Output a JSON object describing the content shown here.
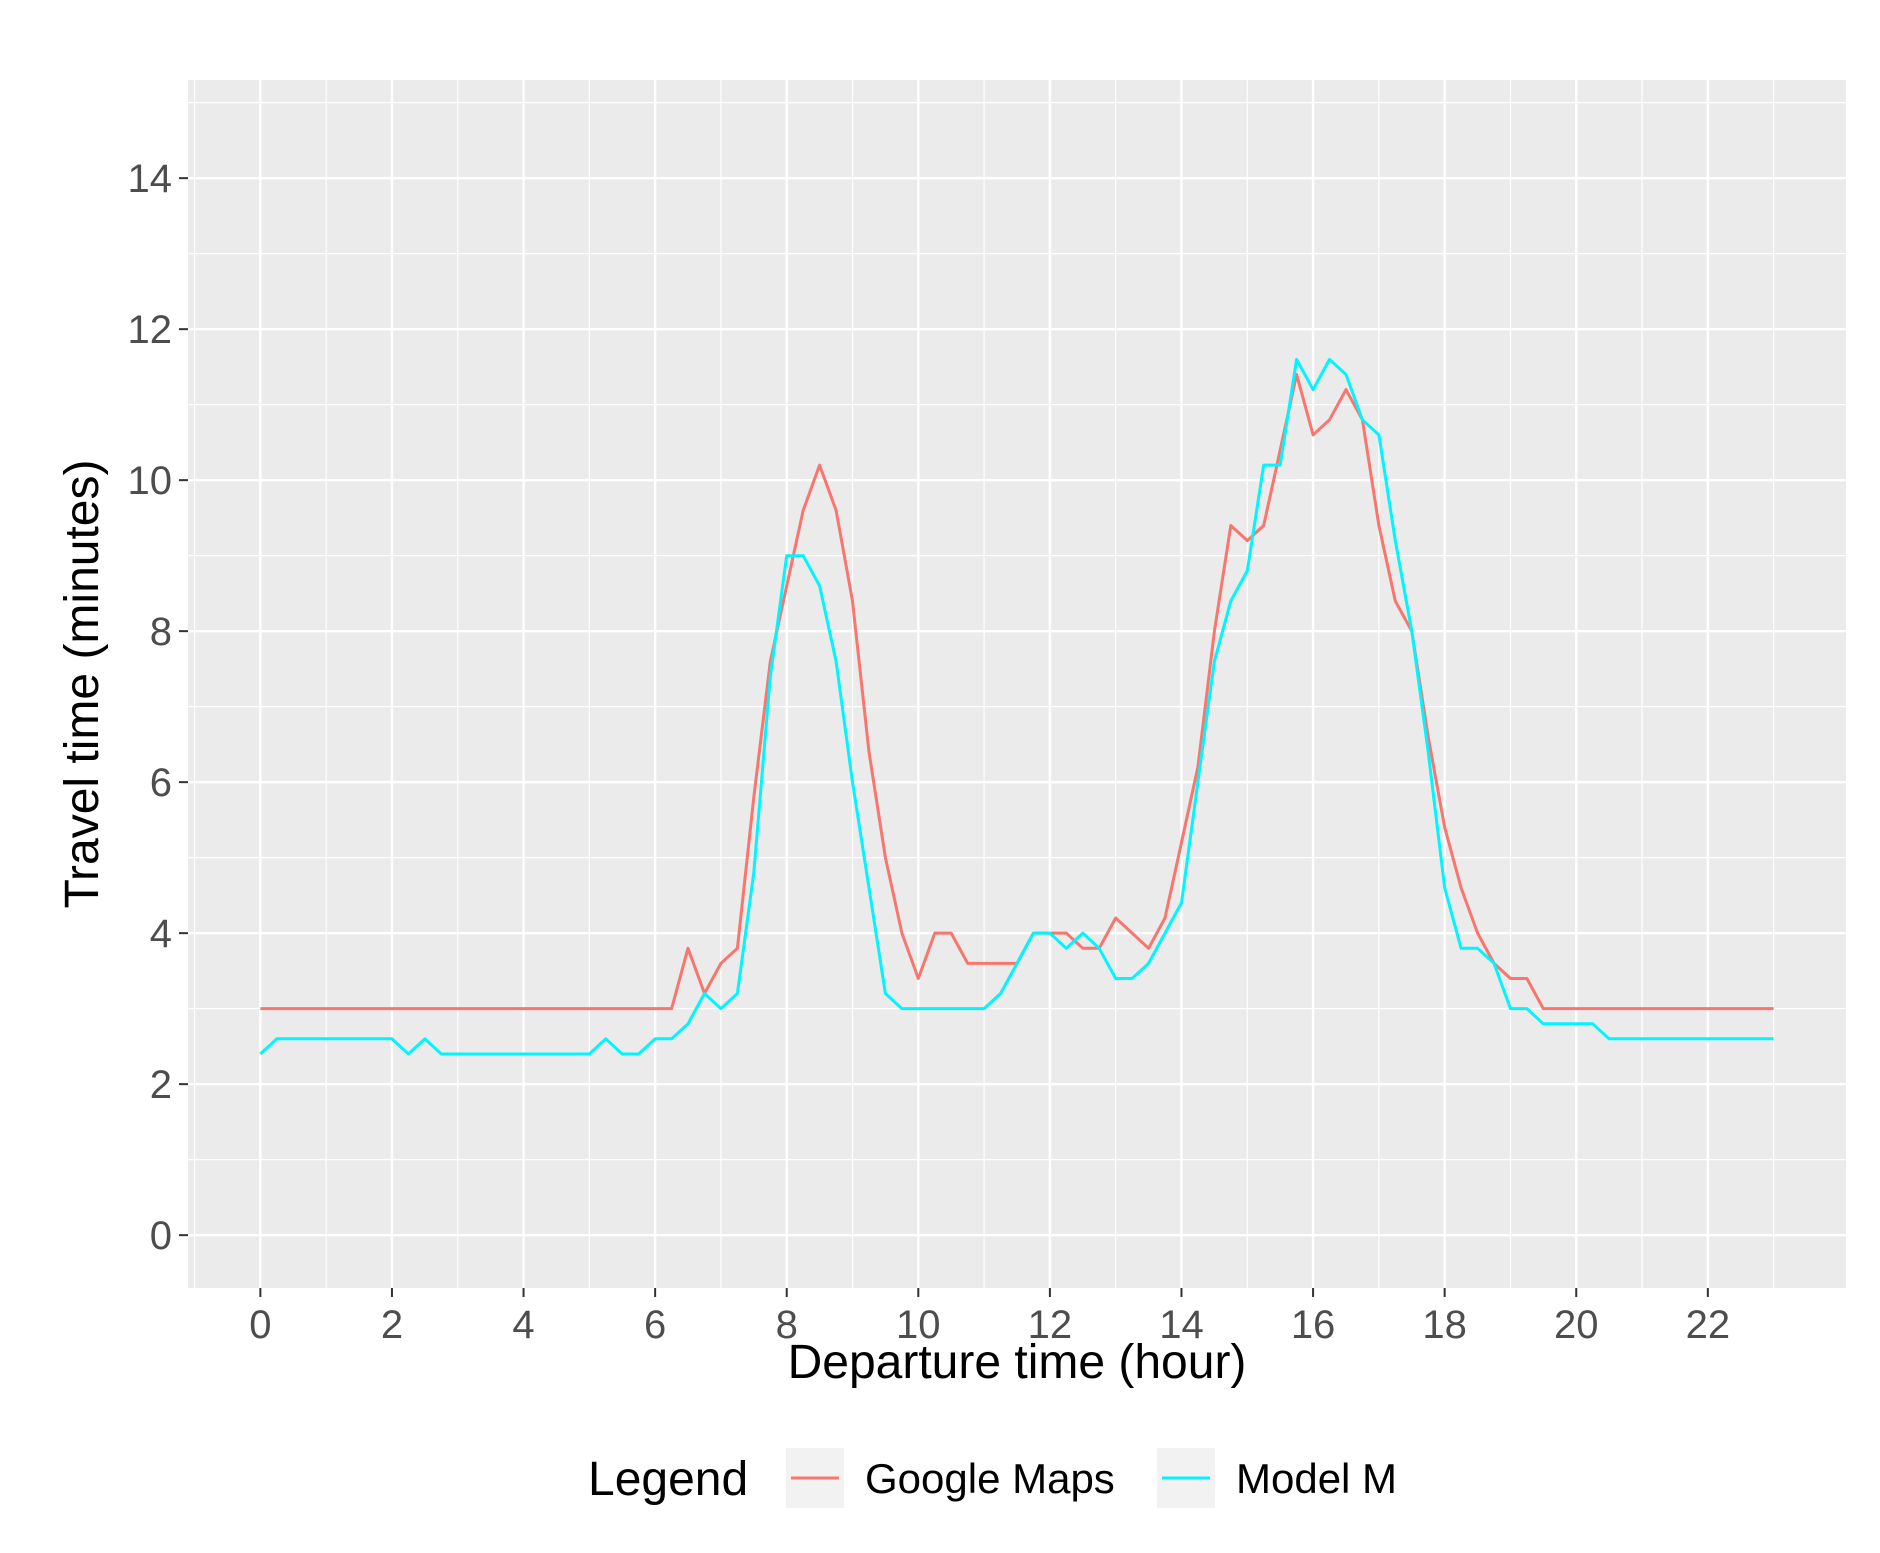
{
  "chart_data": {
    "type": "line",
    "title": "",
    "xlabel": "Departure time (hour)",
    "ylabel": "Travel time (minutes)",
    "xlim": [
      -1.1,
      24.1
    ],
    "ylim": [
      -0.7,
      15.3
    ],
    "x_ticks": [
      0,
      2,
      4,
      6,
      8,
      10,
      12,
      14,
      16,
      18,
      20,
      22
    ],
    "x_tick_labels": [
      "0",
      "2",
      "4",
      "6",
      "8",
      "10",
      "12",
      "14",
      "16",
      "18",
      "20",
      "22"
    ],
    "y_ticks": [
      0,
      2,
      4,
      6,
      8,
      10,
      12,
      14
    ],
    "y_tick_labels": [
      "0",
      "2",
      "4",
      "6",
      "8",
      "10",
      "12",
      "14"
    ],
    "grid": true,
    "legend_position": "bottom",
    "legend_title": "Legend",
    "series": [
      {
        "name": "Google Maps",
        "color": "#F8766D",
        "points": [
          [
            0,
            3
          ],
          [
            6.25,
            3
          ],
          [
            6.5,
            3.8
          ],
          [
            6.75,
            3.2
          ],
          [
            7,
            3.6
          ],
          [
            7.25,
            3.8
          ],
          [
            7.5,
            5.8
          ],
          [
            7.75,
            7.6
          ],
          [
            8,
            8.6
          ],
          [
            8.25,
            9.6
          ],
          [
            8.5,
            10.2
          ],
          [
            8.75,
            9.6
          ],
          [
            9,
            8.4
          ],
          [
            9.25,
            6.4
          ],
          [
            9.5,
            5
          ],
          [
            9.75,
            4
          ],
          [
            10,
            3.4
          ],
          [
            10.25,
            4
          ],
          [
            10.5,
            4
          ],
          [
            10.75,
            3.6
          ],
          [
            11.5,
            3.6
          ],
          [
            11.75,
            4
          ],
          [
            12.25,
            4
          ],
          [
            12.5,
            3.8
          ],
          [
            12.75,
            3.8
          ],
          [
            13,
            4.2
          ],
          [
            13.5,
            3.8
          ],
          [
            13.75,
            4.2
          ],
          [
            14,
            5.2
          ],
          [
            14.25,
            6.2
          ],
          [
            14.5,
            8
          ],
          [
            14.75,
            9.4
          ],
          [
            15,
            9.2
          ],
          [
            15.25,
            9.4
          ],
          [
            15.5,
            10.4
          ],
          [
            15.75,
            11.4
          ],
          [
            16,
            10.6
          ],
          [
            16.25,
            10.8
          ],
          [
            16.5,
            11.2
          ],
          [
            16.75,
            10.8
          ],
          [
            17,
            9.4
          ],
          [
            17.25,
            8.4
          ],
          [
            17.5,
            8
          ],
          [
            17.75,
            6.6
          ],
          [
            18,
            5.4
          ],
          [
            18.25,
            4.6
          ],
          [
            18.5,
            4
          ],
          [
            18.75,
            3.6
          ],
          [
            19,
            3.4
          ],
          [
            19.25,
            3.4
          ],
          [
            19.5,
            3
          ],
          [
            23,
            3
          ]
        ]
      },
      {
        "name": "Model M",
        "color": "#00F5FF",
        "points": [
          [
            0,
            2.4
          ],
          [
            0.25,
            2.6
          ],
          [
            2,
            2.6
          ],
          [
            2.25,
            2.4
          ],
          [
            2.5,
            2.6
          ],
          [
            2.75,
            2.4
          ],
          [
            5,
            2.4
          ],
          [
            5.25,
            2.6
          ],
          [
            5.5,
            2.4
          ],
          [
            5.75,
            2.4
          ],
          [
            6,
            2.6
          ],
          [
            6.25,
            2.6
          ],
          [
            6.5,
            2.8
          ],
          [
            6.75,
            3.2
          ],
          [
            7,
            3
          ],
          [
            7.25,
            3.2
          ],
          [
            7.5,
            4.8
          ],
          [
            7.75,
            7.4
          ],
          [
            8,
            9
          ],
          [
            8.25,
            9
          ],
          [
            8.5,
            8.6
          ],
          [
            8.75,
            7.6
          ],
          [
            9,
            6
          ],
          [
            9.25,
            4.6
          ],
          [
            9.5,
            3.2
          ],
          [
            9.75,
            3
          ],
          [
            11,
            3
          ],
          [
            11.25,
            3.2
          ],
          [
            11.5,
            3.6
          ],
          [
            11.75,
            4
          ],
          [
            12,
            4
          ],
          [
            12.25,
            3.8
          ],
          [
            12.5,
            4
          ],
          [
            12.75,
            3.8
          ],
          [
            13,
            3.4
          ],
          [
            13.25,
            3.4
          ],
          [
            13.5,
            3.6
          ],
          [
            13.75,
            4
          ],
          [
            14,
            4.4
          ],
          [
            14.25,
            6
          ],
          [
            14.5,
            7.6
          ],
          [
            14.75,
            8.4
          ],
          [
            15,
            8.8
          ],
          [
            15.25,
            10.2
          ],
          [
            15.5,
            10.2
          ],
          [
            15.75,
            11.6
          ],
          [
            16,
            11.2
          ],
          [
            16.25,
            11.6
          ],
          [
            16.5,
            11.4
          ],
          [
            16.75,
            10.8
          ],
          [
            17,
            10.6
          ],
          [
            17.25,
            9.2
          ],
          [
            17.5,
            8
          ],
          [
            17.75,
            6.4
          ],
          [
            18,
            4.6
          ],
          [
            18.25,
            3.8
          ],
          [
            18.5,
            3.8
          ],
          [
            18.75,
            3.6
          ],
          [
            19,
            3
          ],
          [
            19.25,
            3
          ],
          [
            19.5,
            2.8
          ],
          [
            20.25,
            2.8
          ],
          [
            20.5,
            2.6
          ],
          [
            23,
            2.6
          ]
        ]
      }
    ]
  }
}
